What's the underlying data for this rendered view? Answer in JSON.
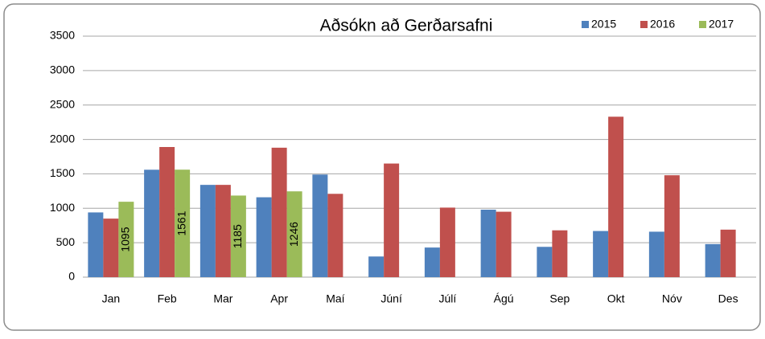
{
  "chart_data": {
    "type": "bar",
    "title": "Aðsókn að Gerðarsafni",
    "categories": [
      "Jan",
      "Feb",
      "Mar",
      "Apr",
      "Maí",
      "Júní",
      "Júlí",
      "Ágú",
      "Sep",
      "Okt",
      "Nóv",
      "Des"
    ],
    "series": [
      {
        "name": "2015",
        "color": "#4f81bd",
        "values": [
          940,
          1560,
          1340,
          1160,
          1490,
          300,
          430,
          980,
          440,
          670,
          660,
          480
        ]
      },
      {
        "name": "2016",
        "color": "#c0504d",
        "values": [
          850,
          1890,
          1340,
          1880,
          1210,
          1650,
          1010,
          950,
          680,
          2330,
          1480,
          690
        ]
      },
      {
        "name": "2017",
        "color": "#9bbb59",
        "values": [
          1095,
          1561,
          1185,
          1246,
          null,
          null,
          null,
          null,
          null,
          null,
          null,
          null
        ],
        "data_labels": true
      }
    ],
    "ylim": [
      0,
      3500
    ],
    "yticks": [
      0,
      500,
      1000,
      1500,
      2000,
      2500,
      3000,
      3500
    ],
    "grid": true,
    "legend": "top-right"
  }
}
